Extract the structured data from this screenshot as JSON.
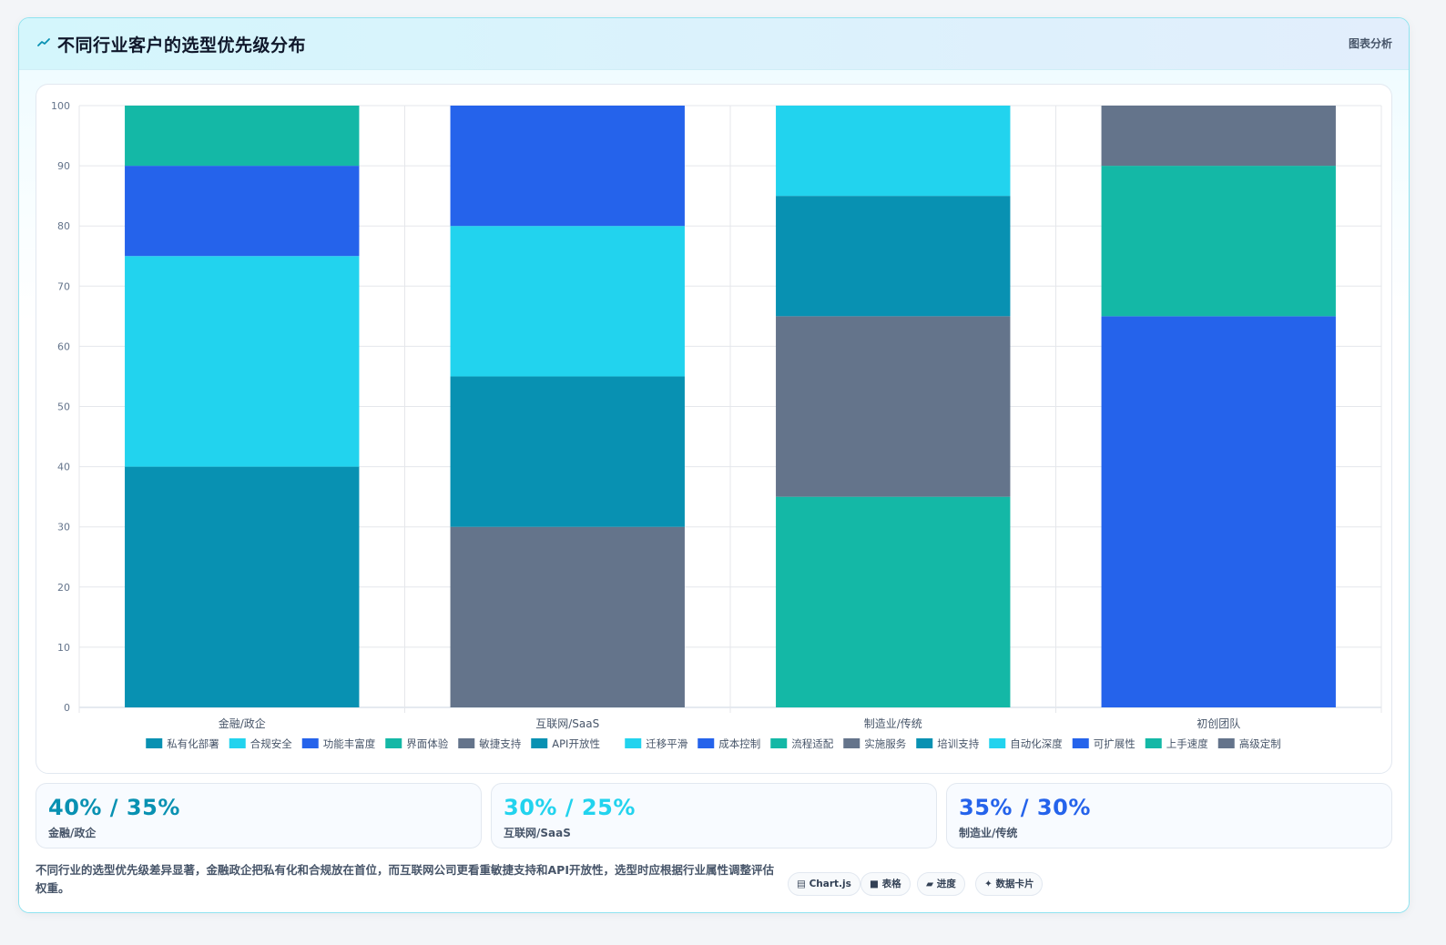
{
  "header": {
    "title": "不同行业客户的选型优先级分布",
    "tag": "图表分析"
  },
  "chart_data": {
    "type": "bar",
    "stacked": true,
    "categories": [
      "金融/政企",
      "互联网/SaaS",
      "制造业/传统",
      "初创团队"
    ],
    "ylim": [
      0,
      100
    ],
    "yticks": [
      0,
      10,
      20,
      30,
      40,
      50,
      60,
      70,
      80,
      90,
      100
    ],
    "grid": true,
    "legend_position": "bottom",
    "series": [
      {
        "name": "私有化部署",
        "color": "#0891b2",
        "values": [
          40,
          0,
          0,
          0
        ]
      },
      {
        "name": "合规安全",
        "color": "#22d3ee",
        "values": [
          35,
          0,
          0,
          0
        ]
      },
      {
        "name": "功能丰富度",
        "color": "#2563eb",
        "values": [
          15,
          0,
          0,
          0
        ]
      },
      {
        "name": "界面体验",
        "color": "#14b8a6",
        "values": [
          10,
          0,
          0,
          0
        ]
      },
      {
        "name": "敏捷支持",
        "color": "#64748b",
        "values": [
          0,
          30,
          0,
          0
        ]
      },
      {
        "name": "API开放性",
        "color": "#0891b2",
        "values": [
          0,
          25,
          0,
          0
        ]
      },
      {
        "name": "迁移平滑",
        "color": "#22d3ee",
        "values": [
          0,
          25,
          0,
          0
        ]
      },
      {
        "name": "成本控制",
        "color": "#2563eb",
        "values": [
          0,
          20,
          0,
          0
        ]
      },
      {
        "name": "流程适配",
        "color": "#14b8a6",
        "values": [
          0,
          0,
          35,
          0
        ]
      },
      {
        "name": "实施服务",
        "color": "#64748b",
        "values": [
          0,
          0,
          30,
          0
        ]
      },
      {
        "name": "培训支持",
        "color": "#0891b2",
        "values": [
          0,
          0,
          20,
          0
        ]
      },
      {
        "name": "自动化深度",
        "color": "#22d3ee",
        "values": [
          0,
          0,
          15,
          0
        ]
      },
      {
        "name": "可扩展性",
        "color": "#2563eb",
        "values": [
          0,
          0,
          0,
          65
        ]
      },
      {
        "name": "上手速度",
        "color": "#14b8a6",
        "values": [
          0,
          0,
          0,
          25
        ]
      },
      {
        "name": "高级定制",
        "color": "#64748b",
        "values": [
          0,
          0,
          0,
          10
        ]
      }
    ]
  },
  "stats": [
    {
      "value": "40% / 35%",
      "label": "金融/政企",
      "color": "#0891b2"
    },
    {
      "value": "30% / 25%",
      "label": "互联网/SaaS",
      "color": "#22d3ee"
    },
    {
      "value": "35% / 30%",
      "label": "制造业/传统",
      "color": "#2563eb"
    }
  ],
  "summary": "不同行业的选型优先级差异显著，金融政企把私有化和合规放在首位，而互联网公司更看重敏捷支持和API开放性，选型时应根据行业属性调整评估权重。",
  "chips": [
    {
      "icon": "▤",
      "label": "Chart.js"
    },
    {
      "icon": "■",
      "label": "表格"
    },
    {
      "icon": "▰",
      "label": "进度"
    },
    {
      "icon": "✦",
      "label": "数据卡片"
    }
  ]
}
